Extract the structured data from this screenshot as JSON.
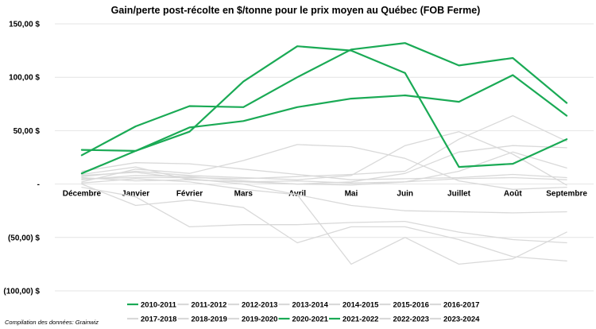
{
  "source_note": "Compilation des données: Grainwiz",
  "chart_data": {
    "type": "line",
    "title": "Gain/perte post-récolte en $/tonne pour le prix moyen au Québec (FOB Ferme)",
    "xlabel": "",
    "ylabel": "",
    "ylim": [
      -100,
      150
    ],
    "ytick_values": [
      150,
      100,
      50,
      0,
      -50,
      -100
    ],
    "ytick_labels": [
      "150,00 $",
      "100,00 $",
      "50,00 $",
      "-  ",
      "(50,00) $",
      "(100,00) $"
    ],
    "categories": [
      "Décembre",
      "Janvier",
      "Février",
      "Mars",
      "Avril",
      "Mai",
      "Juin",
      "Juillet",
      "Août",
      "Septembre"
    ],
    "grid": true,
    "legend_position": "bottom",
    "colors": {
      "highlight": "#1aaa55",
      "muted": "#d9d9d9",
      "grid": "#e4e4e4"
    },
    "series": [
      {
        "name": "2010-2011",
        "highlight": true,
        "values": [
          10,
          31,
          53,
          59,
          72,
          80,
          83,
          77,
          102,
          64
        ]
      },
      {
        "name": "2011-2012",
        "highlight": false,
        "values": [
          4,
          8,
          7,
          3,
          0,
          2,
          10,
          30,
          36,
          34
        ]
      },
      {
        "name": "2012-2013",
        "highlight": false,
        "values": [
          -3,
          -12,
          -40,
          -38,
          -38,
          -36,
          -35,
          -45,
          -52,
          -55
        ]
      },
      {
        "name": "2013-2014",
        "highlight": false,
        "values": [
          8,
          11,
          5,
          0,
          -10,
          -20,
          -25,
          -26,
          -27,
          -26
        ]
      },
      {
        "name": "2014-2015",
        "highlight": false,
        "values": [
          6,
          3,
          4,
          2,
          3,
          1,
          2,
          5,
          6,
          4
        ]
      },
      {
        "name": "2015-2016",
        "highlight": false,
        "values": [
          2,
          14,
          10,
          22,
          37,
          35,
          24,
          3,
          -5,
          -3
        ]
      },
      {
        "name": "2016-2017",
        "highlight": false,
        "values": [
          12,
          20,
          19,
          14,
          9,
          4,
          5,
          6,
          9,
          6
        ]
      },
      {
        "name": "2017-2018",
        "highlight": false,
        "values": [
          9,
          16,
          4,
          2,
          0,
          -1,
          2,
          12,
          30,
          15
        ]
      },
      {
        "name": "2018-2019",
        "highlight": false,
        "values": [
          0,
          -20,
          -15,
          -22,
          -55,
          -40,
          -40,
          -52,
          -68,
          -72
        ]
      },
      {
        "name": "2019-2020",
        "highlight": false,
        "values": [
          1,
          5,
          2,
          -5,
          -10,
          -75,
          -50,
          -75,
          -70,
          -45
        ]
      },
      {
        "name": "2020-2021",
        "highlight": true,
        "values": [
          32,
          31,
          49,
          96,
          129,
          125,
          104,
          16,
          19,
          42
        ]
      },
      {
        "name": "2021-2022",
        "highlight": true,
        "values": [
          27,
          54,
          73,
          72,
          100,
          126,
          132,
          111,
          118,
          76
        ]
      },
      {
        "name": "2022-2023",
        "highlight": false,
        "values": [
          7,
          12,
          8,
          6,
          4,
          8,
          36,
          49,
          28,
          -1
        ]
      },
      {
        "name": "2023-2024",
        "highlight": false,
        "values": [
          5,
          6,
          6,
          5,
          7,
          9,
          12,
          42,
          64,
          40
        ]
      }
    ]
  }
}
